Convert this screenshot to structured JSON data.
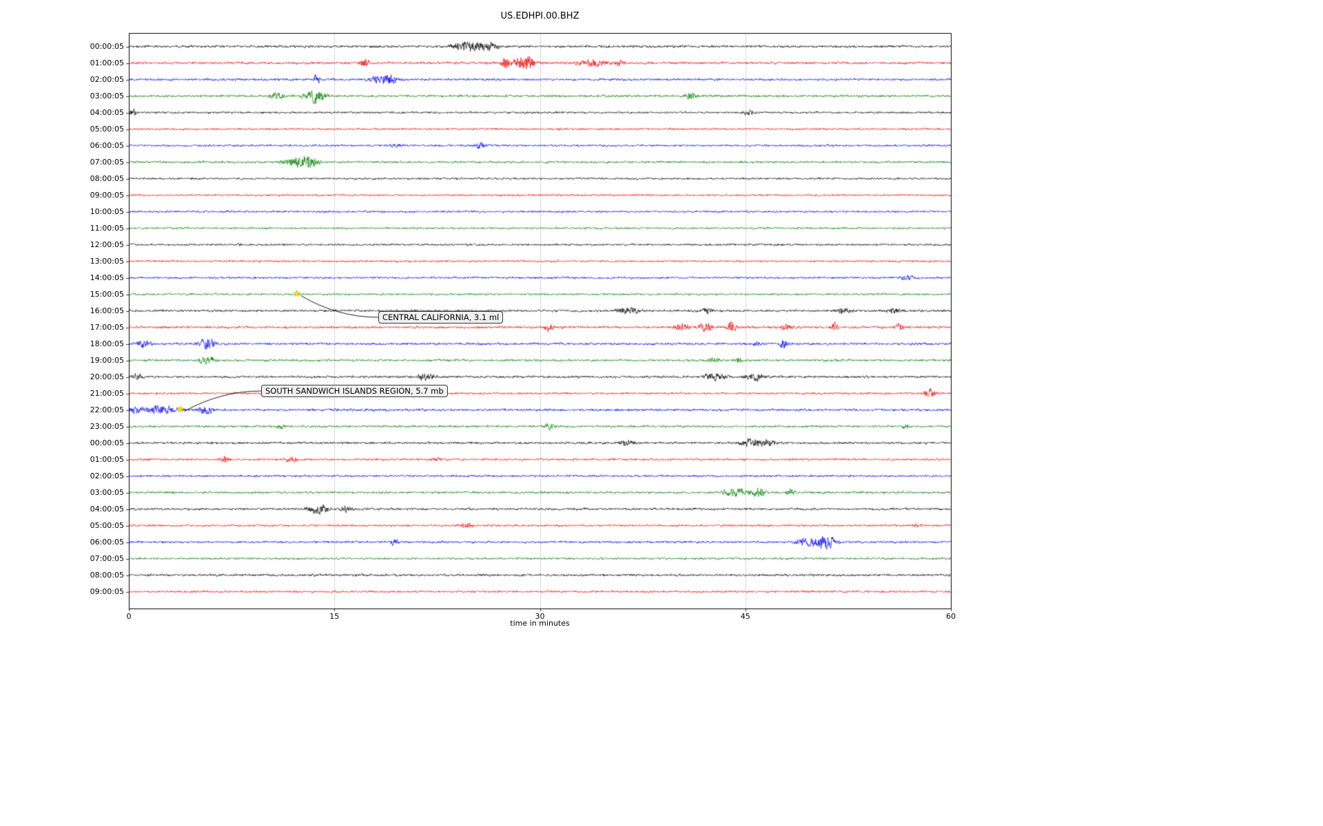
{
  "chart_data": {
    "type": "line",
    "title": "US.EDHPI.00.BHZ",
    "xlabel": "time in minutes",
    "x_ticks": [
      0,
      15,
      30,
      45,
      60
    ],
    "x_range": [
      0,
      60
    ],
    "grid": true,
    "legend": "none",
    "trace_colors": {
      "black": "#000000",
      "red": "#ff0000",
      "blue": "#0000ff",
      "green": "#008000"
    },
    "event_marker_color": "#ffd700",
    "rows": [
      {
        "label": "00:00:05",
        "color": "black",
        "noise": 1.9,
        "bursts": [
          {
            "minute": 24.8,
            "amp": 8,
            "width": 0.8
          },
          {
            "minute": 26.3,
            "amp": 5,
            "width": 0.4
          }
        ]
      },
      {
        "label": "01:00:05",
        "color": "red",
        "noise": 1.9,
        "bursts": [
          {
            "minute": 17.2,
            "amp": 7,
            "width": 0.25
          },
          {
            "minute": 27.5,
            "amp": 10,
            "width": 0.2
          },
          {
            "minute": 28.6,
            "amp": 9,
            "width": 0.5
          },
          {
            "minute": 29.3,
            "amp": 7,
            "width": 0.3
          },
          {
            "minute": 33.8,
            "amp": 6,
            "width": 0.7
          },
          {
            "minute": 35.8,
            "amp": 5,
            "width": 0.2
          }
        ]
      },
      {
        "label": "02:00:05",
        "color": "blue",
        "noise": 1.8,
        "bursts": [
          {
            "minute": 13.7,
            "amp": 8,
            "width": 0.15
          },
          {
            "minute": 18.3,
            "amp": 7,
            "width": 0.5
          },
          {
            "minute": 19.2,
            "amp": 6,
            "width": 0.3
          }
        ]
      },
      {
        "label": "03:00:05",
        "color": "green",
        "noise": 1.9,
        "bursts": [
          {
            "minute": 10.8,
            "amp": 6,
            "width": 0.3
          },
          {
            "minute": 13.6,
            "amp": 11,
            "width": 0.5
          },
          {
            "minute": 41.0,
            "amp": 5,
            "width": 0.3
          }
        ]
      },
      {
        "label": "04:00:05",
        "color": "black",
        "noise": 1.6,
        "bursts": [
          {
            "minute": 0.3,
            "amp": 5,
            "width": 0.2
          },
          {
            "minute": 45.2,
            "amp": 4,
            "width": 0.3
          }
        ]
      },
      {
        "label": "05:00:05",
        "color": "red",
        "noise": 1.6,
        "bursts": []
      },
      {
        "label": "06:00:05",
        "color": "blue",
        "noise": 1.7,
        "bursts": [
          {
            "minute": 25.6,
            "amp": 4,
            "width": 0.3
          },
          {
            "minute": 19.5,
            "amp": 2.5,
            "width": 0.3
          }
        ]
      },
      {
        "label": "07:00:05",
        "color": "green",
        "noise": 1.8,
        "bursts": [
          {
            "minute": 12.4,
            "amp": 9,
            "width": 0.7
          },
          {
            "minute": 13.2,
            "amp": 7,
            "width": 0.4
          }
        ]
      },
      {
        "label": "08:00:05",
        "color": "black",
        "noise": 1.6,
        "bursts": []
      },
      {
        "label": "09:00:05",
        "color": "red",
        "noise": 1.6,
        "bursts": []
      },
      {
        "label": "10:00:05",
        "color": "blue",
        "noise": 1.7,
        "bursts": []
      },
      {
        "label": "11:00:05",
        "color": "green",
        "noise": 1.6,
        "bursts": []
      },
      {
        "label": "12:00:05",
        "color": "black",
        "noise": 1.6,
        "bursts": [
          {
            "minute": 8.1,
            "amp": 4,
            "width": 0.1
          }
        ]
      },
      {
        "label": "13:00:05",
        "color": "red",
        "noise": 1.6,
        "bursts": []
      },
      {
        "label": "14:00:05",
        "color": "blue",
        "noise": 1.7,
        "bursts": [
          {
            "minute": 56.9,
            "amp": 3,
            "width": 0.4
          }
        ]
      },
      {
        "label": "15:00:05",
        "color": "green",
        "noise": 1.6,
        "bursts": []
      },
      {
        "label": "16:00:05",
        "color": "black",
        "noise": 1.8,
        "bursts": [
          {
            "minute": 36.5,
            "amp": 5,
            "width": 0.6
          },
          {
            "minute": 42.2,
            "amp": 4,
            "width": 0.3
          },
          {
            "minute": 52.1,
            "amp": 5,
            "width": 0.4
          },
          {
            "minute": 55.9,
            "amp": 4,
            "width": 0.3
          }
        ]
      },
      {
        "label": "17:00:05",
        "color": "red",
        "noise": 1.9,
        "bursts": [
          {
            "minute": 30.6,
            "amp": 7,
            "width": 0.2
          },
          {
            "minute": 40.4,
            "amp": 6,
            "width": 0.4
          },
          {
            "minute": 42.1,
            "amp": 8,
            "width": 0.3
          },
          {
            "minute": 44.0,
            "amp": 10,
            "width": 0.2
          },
          {
            "minute": 48.0,
            "amp": 5,
            "width": 0.3
          },
          {
            "minute": 51.5,
            "amp": 7,
            "width": 0.2
          },
          {
            "minute": 56.2,
            "amp": 6,
            "width": 0.2
          }
        ]
      },
      {
        "label": "18:00:05",
        "color": "blue",
        "noise": 1.9,
        "bursts": [
          {
            "minute": 1.1,
            "amp": 7,
            "width": 0.3
          },
          {
            "minute": 5.7,
            "amp": 9,
            "width": 0.4
          },
          {
            "minute": 45.9,
            "amp": 4,
            "width": 0.2
          },
          {
            "minute": 47.8,
            "amp": 11,
            "width": 0.15
          }
        ]
      },
      {
        "label": "19:00:05",
        "color": "green",
        "noise": 1.8,
        "bursts": [
          {
            "minute": 5.7,
            "amp": 8,
            "width": 0.4
          },
          {
            "minute": 42.7,
            "amp": 4,
            "width": 0.3
          },
          {
            "minute": 44.6,
            "amp": 4,
            "width": 0.2
          }
        ]
      },
      {
        "label": "20:00:05",
        "color": "black",
        "noise": 1.8,
        "bursts": [
          {
            "minute": 0.5,
            "amp": 4,
            "width": 0.3
          },
          {
            "minute": 21.6,
            "amp": 5,
            "width": 0.5
          },
          {
            "minute": 42.8,
            "amp": 7,
            "width": 0.5
          },
          {
            "minute": 45.7,
            "amp": 6,
            "width": 0.5
          }
        ]
      },
      {
        "label": "21:00:05",
        "color": "red",
        "noise": 1.7,
        "bursts": [
          {
            "minute": 58.5,
            "amp": 7,
            "width": 0.3
          }
        ]
      },
      {
        "label": "22:00:05",
        "color": "blue",
        "noise": 1.9,
        "bursts": [
          {
            "minute": 0.5,
            "amp": 5,
            "width": 0.3
          },
          {
            "minute": 2.3,
            "amp": 7,
            "width": 0.8
          },
          {
            "minute": 5.6,
            "amp": 6,
            "width": 0.4
          }
        ]
      },
      {
        "label": "23:00:05",
        "color": "green",
        "noise": 1.8,
        "bursts": [
          {
            "minute": 11.1,
            "amp": 4,
            "width": 0.2
          },
          {
            "minute": 30.7,
            "amp": 5,
            "width": 0.2
          },
          {
            "minute": 56.7,
            "amp": 5,
            "width": 0.15
          }
        ]
      },
      {
        "label": "00:00:05",
        "color": "black",
        "noise": 1.8,
        "bursts": [
          {
            "minute": 36.3,
            "amp": 4,
            "width": 0.4
          },
          {
            "minute": 45.3,
            "amp": 6,
            "width": 0.5
          },
          {
            "minute": 46.6,
            "amp": 5,
            "width": 0.5
          }
        ]
      },
      {
        "label": "01:00:05",
        "color": "red",
        "noise": 1.7,
        "bursts": [
          {
            "minute": 7.0,
            "amp": 6,
            "width": 0.2
          },
          {
            "minute": 11.9,
            "amp": 5,
            "width": 0.3
          },
          {
            "minute": 22.5,
            "amp": 3,
            "width": 0.3
          }
        ]
      },
      {
        "label": "02:00:05",
        "color": "blue",
        "noise": 1.7,
        "bursts": []
      },
      {
        "label": "03:00:05",
        "color": "green",
        "noise": 1.8,
        "bursts": [
          {
            "minute": 44.3,
            "amp": 7,
            "width": 0.6
          },
          {
            "minute": 46.0,
            "amp": 8,
            "width": 0.3
          },
          {
            "minute": 48.3,
            "amp": 6,
            "width": 0.2
          }
        ]
      },
      {
        "label": "04:00:05",
        "color": "black",
        "noise": 1.8,
        "bursts": [
          {
            "minute": 13.8,
            "amp": 8,
            "width": 0.5
          },
          {
            "minute": 15.9,
            "amp": 5,
            "width": 0.3
          }
        ]
      },
      {
        "label": "05:00:05",
        "color": "red",
        "noise": 1.7,
        "bursts": [
          {
            "minute": 24.6,
            "amp": 4,
            "width": 0.3
          },
          {
            "minute": 57.5,
            "amp": 3,
            "width": 0.2
          }
        ]
      },
      {
        "label": "06:00:05",
        "color": "blue",
        "noise": 1.8,
        "bursts": [
          {
            "minute": 19.4,
            "amp": 6,
            "width": 0.15
          },
          {
            "minute": 49.3,
            "amp": 6,
            "width": 0.4
          },
          {
            "minute": 50.5,
            "amp": 9,
            "width": 0.5
          },
          {
            "minute": 51.2,
            "amp": 7,
            "width": 0.3
          }
        ]
      },
      {
        "label": "07:00:05",
        "color": "green",
        "noise": 1.7,
        "bursts": []
      },
      {
        "label": "08:00:05",
        "color": "black",
        "noise": 1.8,
        "bursts": []
      },
      {
        "label": "09:00:05",
        "color": "red",
        "noise": 1.7,
        "bursts": []
      }
    ],
    "events": [
      {
        "label": "CENTRAL CALIFORNIA, 3.1 ml",
        "row_index": 15,
        "minute": 12.3,
        "box_x": 549,
        "box_y": 452
      },
      {
        "label": "SOUTH SANDWICH ISLANDS REGION, 5.7 mb",
        "row_index": 22,
        "minute": 3.8,
        "box_x": 379,
        "box_y": 559
      }
    ]
  }
}
